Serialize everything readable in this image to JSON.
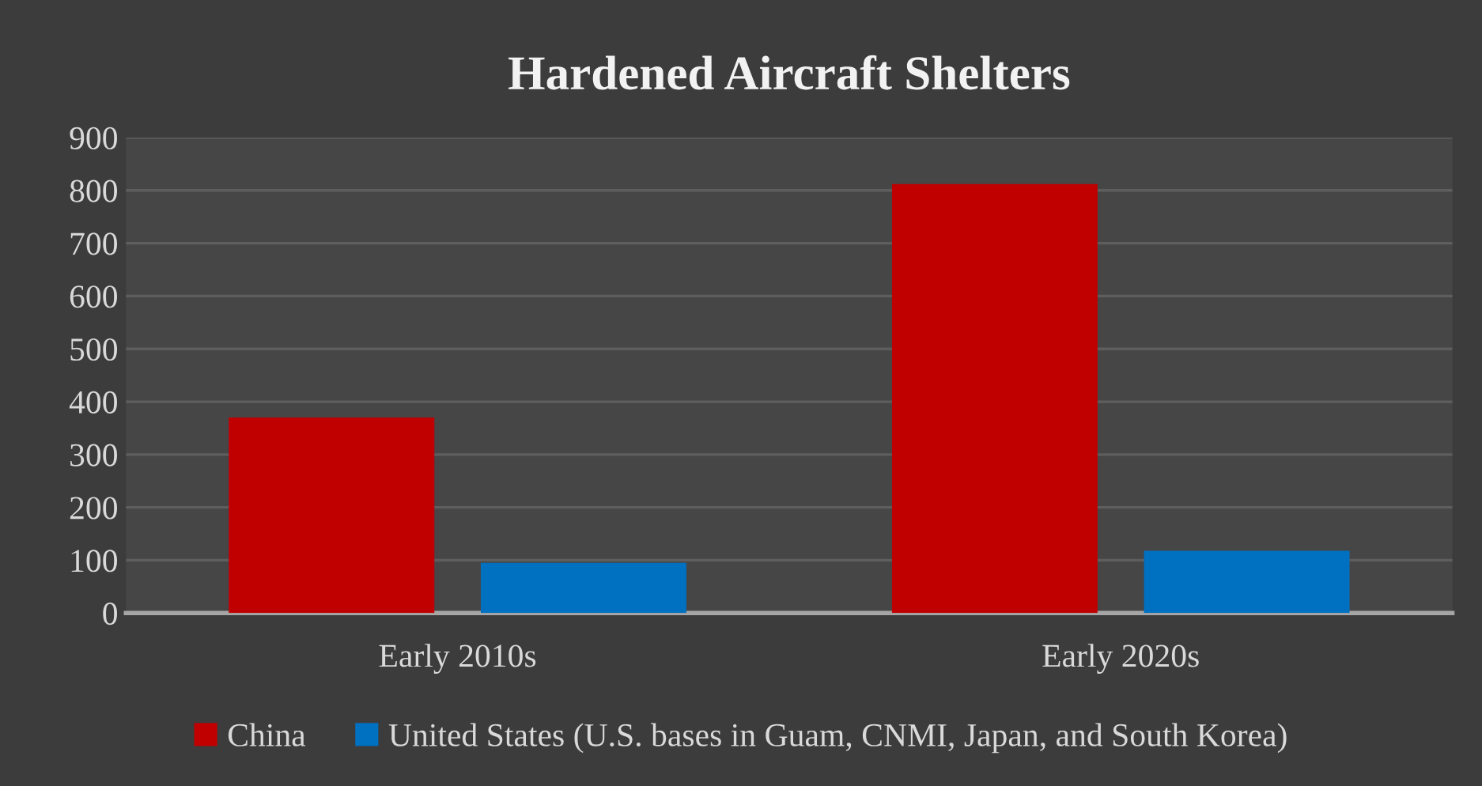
{
  "chart_data": {
    "type": "bar",
    "title": "Hardened Aircraft Shelters",
    "categories": [
      "Early 2010s",
      "Early 2020s"
    ],
    "series": [
      {
        "name": "China",
        "color": "#c00000",
        "values": [
          370,
          812
        ]
      },
      {
        "name": "United States (U.S. bases in Guam, CNMI, Japan, and South Korea)",
        "color": "#0070c0",
        "values": [
          95,
          118
        ]
      }
    ],
    "ylim": [
      0,
      900
    ],
    "yticks": [
      0,
      100,
      200,
      300,
      400,
      500,
      600,
      700,
      800,
      900
    ],
    "grid": "y",
    "legend": "bottom"
  }
}
